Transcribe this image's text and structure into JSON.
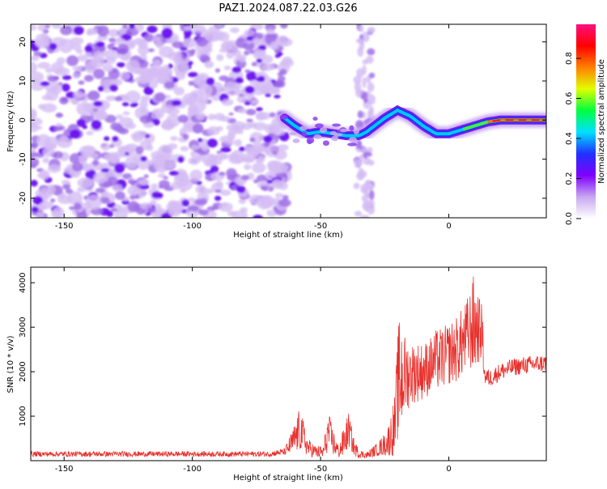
{
  "title": "PAZ1.2024.087.22.03.G26",
  "chart_data": [
    {
      "type": "heatmap",
      "xlabel": "Height of straight line (km)",
      "ylabel": "Frequency (Hz)",
      "xlim": [
        -163,
        38
      ],
      "ylim": [
        -25,
        24.5
      ],
      "x_ticks": [
        -150,
        -100,
        -50,
        0
      ],
      "y_ticks": [
        -20,
        -10,
        0,
        10,
        20
      ],
      "grid": false,
      "colorbar": {
        "label": "Normalized spectral amplitude",
        "range": [
          0,
          0.97
        ],
        "ticks": [
          0.0,
          0.2,
          0.4,
          0.6,
          0.8
        ],
        "colormap": [
          "#ffffff",
          "#c8a8f0",
          "#8000ff",
          "#2030ff",
          "#00e0ff",
          "#00ff40",
          "#e0ff00",
          "#ff8000",
          "#ff0000",
          "#ff1080"
        ]
      },
      "ridge": {
        "x": [
          -64,
          -60,
          -55,
          -50,
          -45,
          -40,
          -35,
          -32,
          -28,
          -25,
          -20,
          -15,
          -10,
          -5,
          0,
          5,
          10,
          15,
          20,
          25,
          30,
          38
        ],
        "y": [
          0.5,
          -1.5,
          -3.5,
          -3,
          -3.5,
          -4,
          -4,
          -3,
          -1,
          0.5,
          2.5,
          1,
          -1.5,
          -3.5,
          -3.5,
          -2.5,
          -1.5,
          -0.5,
          0,
          0,
          0,
          0
        ],
        "amplitude": [
          0.3,
          0.35,
          0.3,
          0.35,
          0.3,
          0.3,
          0.3,
          0.3,
          0.35,
          0.35,
          0.4,
          0.4,
          0.4,
          0.4,
          0.4,
          0.45,
          0.5,
          0.6,
          0.75,
          0.9,
          0.9,
          0.9
        ]
      },
      "noise_region_km": [
        -163,
        -64
      ],
      "noise_band_km": [
        -36,
        -30
      ]
    },
    {
      "type": "line",
      "xlabel": "Height of straight line (km)",
      "ylabel": "SNR (10 * v/v)",
      "xlim": [
        -163,
        38
      ],
      "ylim": [
        0,
        4350
      ],
      "x_ticks": [
        -150,
        -100,
        -50,
        0
      ],
      "y_ticks": [
        1000,
        2000,
        3000,
        4000
      ],
      "color": "#e8302c",
      "grid": false,
      "envelope": {
        "x": [
          -163,
          -70,
          -64,
          -61,
          -58,
          -55,
          -52,
          -49,
          -47,
          -45,
          -43,
          -41,
          -39,
          -37,
          -35,
          -32,
          -28,
          -24,
          -21,
          -20,
          -19,
          -17,
          -15,
          -13,
          -11,
          -9,
          -7,
          -5,
          -3,
          -1,
          0,
          3,
          6,
          8,
          9,
          10,
          11,
          12,
          13,
          14,
          16,
          20,
          25,
          30,
          38
        ],
        "base": [
          150,
          150,
          200,
          400,
          700,
          300,
          200,
          180,
          650,
          400,
          200,
          400,
          700,
          300,
          150,
          120,
          250,
          400,
          800,
          1600,
          1900,
          1900,
          1950,
          2000,
          2000,
          2050,
          2150,
          2250,
          2300,
          2350,
          2400,
          2500,
          2700,
          2900,
          3000,
          3050,
          3000,
          2950,
          2900,
          1900,
          1850,
          2000,
          2100,
          2150,
          2200
        ],
        "amp": [
          60,
          60,
          80,
          300,
          500,
          200,
          150,
          150,
          450,
          300,
          150,
          350,
          400,
          200,
          100,
          80,
          150,
          300,
          700,
          1200,
          1500,
          900,
          700,
          700,
          650,
          650,
          650,
          700,
          700,
          700,
          700,
          750,
          800,
          900,
          1000,
          1250,
          900,
          700,
          700,
          200,
          200,
          200,
          200,
          200,
          200
        ]
      }
    }
  ]
}
